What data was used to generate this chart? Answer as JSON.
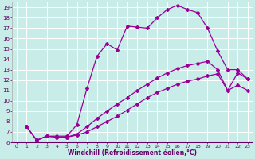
{
  "xlabel": "Windchill (Refroidissement éolien,°C)",
  "xlim": [
    -0.5,
    23.5
  ],
  "ylim": [
    6,
    19.5
  ],
  "xticks": [
    0,
    1,
    2,
    3,
    4,
    5,
    6,
    7,
    8,
    9,
    10,
    11,
    12,
    13,
    14,
    15,
    16,
    17,
    18,
    19,
    20,
    21,
    22,
    23
  ],
  "yticks": [
    6,
    7,
    8,
    9,
    10,
    11,
    12,
    13,
    14,
    15,
    16,
    17,
    18,
    19
  ],
  "background_color": "#c8ece8",
  "line_color": "#990099",
  "grid_color": "#ffffff",
  "line1_x": [
    1,
    2,
    3,
    4,
    5,
    6,
    7,
    8,
    9,
    10,
    11,
    12,
    13,
    14,
    15,
    16,
    17,
    18,
    19,
    20,
    21,
    22,
    23
  ],
  "line1_y": [
    7.5,
    6.2,
    6.6,
    6.6,
    6.6,
    7.7,
    11.2,
    14.3,
    15.5,
    14.9,
    17.2,
    17.1,
    17.0,
    18.0,
    18.8,
    19.2,
    18.8,
    18.5,
    17.0,
    14.8,
    13.0,
    13.0,
    12.1
  ],
  "line2_x": [
    1,
    2,
    3,
    4,
    5,
    6,
    7,
    8,
    9,
    10,
    11,
    12,
    13,
    14,
    15,
    16,
    17,
    18,
    19,
    20,
    21,
    22,
    23
  ],
  "line2_y": [
    7.5,
    6.2,
    6.6,
    6.5,
    6.5,
    6.8,
    7.5,
    8.3,
    9.0,
    9.7,
    10.3,
    11.0,
    11.6,
    12.2,
    12.7,
    13.1,
    13.4,
    13.6,
    13.8,
    13.0,
    11.0,
    12.7,
    12.1
  ],
  "line3_x": [
    1,
    2,
    3,
    4,
    5,
    6,
    7,
    8,
    9,
    10,
    11,
    12,
    13,
    14,
    15,
    16,
    17,
    18,
    19,
    20,
    21,
    22,
    23
  ],
  "line3_y": [
    7.5,
    6.2,
    6.6,
    6.5,
    6.5,
    6.7,
    7.0,
    7.5,
    8.0,
    8.5,
    9.1,
    9.7,
    10.3,
    10.8,
    11.2,
    11.6,
    11.9,
    12.1,
    12.4,
    12.6,
    11.0,
    11.5,
    11.0
  ],
  "marker": "D",
  "marker_size": 2.0,
  "line_width": 0.9,
  "axis_label_color": "#660066",
  "tick_color": "#660066",
  "spine_color": "#660066"
}
